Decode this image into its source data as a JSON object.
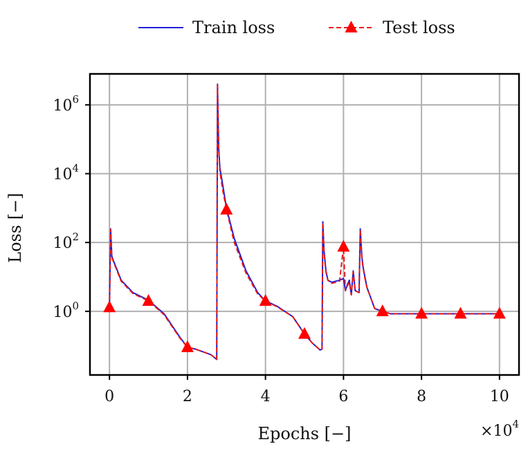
{
  "chart_data": {
    "type": "line",
    "xlabel": "Epochs [−]",
    "ylabel": "Loss [−]",
    "x_multiplier_label": "×10",
    "x_multiplier_exp": "4",
    "xlim": [
      -0.5,
      10.5
    ],
    "ylim_log10": [
      -1.85,
      6.9
    ],
    "yscale": "log",
    "grid": true,
    "legend": {
      "placement": "top-center",
      "entries": [
        "train",
        "test"
      ]
    },
    "xticks": [
      {
        "value": 0,
        "label": "0"
      },
      {
        "value": 2,
        "label": "2"
      },
      {
        "value": 4,
        "label": "4"
      },
      {
        "value": 6,
        "label": "6"
      },
      {
        "value": 8,
        "label": "8"
      },
      {
        "value": 10,
        "label": "10"
      }
    ],
    "yticks": [
      {
        "exp": 0,
        "base": "10",
        "sup": "0"
      },
      {
        "exp": 2,
        "base": "10",
        "sup": "2"
      },
      {
        "exp": 4,
        "base": "10",
        "sup": "4"
      },
      {
        "exp": 6,
        "base": "10",
        "sup": "6"
      }
    ],
    "series": [
      {
        "name": "Train loss",
        "color": "#1f1fd6",
        "style": "solid",
        "marker": "none",
        "x": [
          0.0,
          0.03,
          0.06,
          0.1,
          0.3,
          0.6,
          1.0,
          1.4,
          1.8,
          2.0,
          2.2,
          2.6,
          2.75,
          2.77,
          2.8,
          2.83,
          2.9,
          3.0,
          3.2,
          3.5,
          3.8,
          4.0,
          4.3,
          4.7,
          5.0,
          5.2,
          5.4,
          5.45,
          5.47,
          5.5,
          5.55,
          5.6,
          5.7,
          5.9,
          6.0,
          6.05,
          6.1,
          6.15,
          6.2,
          6.25,
          6.3,
          6.4,
          6.43,
          6.47,
          6.5,
          6.55,
          6.6,
          6.8,
          7.0,
          7.2,
          8.0,
          9.0,
          10.0
        ],
        "y": [
          1.2,
          250,
          40,
          30,
          8,
          3.5,
          2.1,
          0.85,
          0.18,
          0.09,
          0.08,
          0.055,
          0.04,
          4000000,
          60000,
          15000,
          5000,
          1000,
          130,
          15,
          3.5,
          2.0,
          1.4,
          0.7,
          0.22,
          0.12,
          0.075,
          0.08,
          400,
          60,
          15,
          8,
          7,
          8,
          9,
          4,
          6,
          8,
          3,
          15,
          4,
          3.5,
          250,
          40,
          20,
          10,
          5,
          1.2,
          1.0,
          0.85,
          0.85,
          0.85,
          0.85
        ]
      },
      {
        "name": "Test loss",
        "color": "#e41a1c",
        "style": "dashed",
        "marker": "triangle",
        "x": [
          0.0,
          0.03,
          0.06,
          0.1,
          0.3,
          0.6,
          1.0,
          1.4,
          1.8,
          2.0,
          2.2,
          2.6,
          2.75,
          2.77,
          2.8,
          2.83,
          2.9,
          3.0,
          3.2,
          3.5,
          3.8,
          4.0,
          4.3,
          4.7,
          5.0,
          5.2,
          5.4,
          5.45,
          5.47,
          5.5,
          5.55,
          5.6,
          5.7,
          5.9,
          6.0,
          6.05,
          6.1,
          6.15,
          6.2,
          6.25,
          6.3,
          6.4,
          6.43,
          6.47,
          6.5,
          6.55,
          6.6,
          6.8,
          7.0,
          7.2,
          8.0,
          9.0,
          10.0
        ],
        "y": [
          1.3,
          240,
          38,
          28,
          7.5,
          3.3,
          2.0,
          0.8,
          0.17,
          0.09,
          0.08,
          0.055,
          0.04,
          3800000,
          55000,
          12000,
          3500,
          900,
          100,
          13,
          3.2,
          2.0,
          1.35,
          0.7,
          0.22,
          0.12,
          0.075,
          0.08,
          380,
          55,
          14,
          8,
          6.5,
          7.5,
          75,
          4,
          5.5,
          7,
          3,
          14,
          4,
          3.5,
          240,
          38,
          19,
          9,
          5,
          1.2,
          1.0,
          0.85,
          0.85,
          0.85,
          0.85
        ],
        "markers": [
          {
            "x": 0,
            "y": 1.3
          },
          {
            "x": 1,
            "y": 2.0
          },
          {
            "x": 2,
            "y": 0.09
          },
          {
            "x": 3,
            "y": 900
          },
          {
            "x": 4,
            "y": 2.0
          },
          {
            "x": 5,
            "y": 0.22
          },
          {
            "x": 6,
            "y": 75
          },
          {
            "x": 7,
            "y": 1.0
          },
          {
            "x": 8,
            "y": 0.85
          },
          {
            "x": 9,
            "y": 0.85
          },
          {
            "x": 10,
            "y": 0.85
          }
        ]
      }
    ]
  }
}
